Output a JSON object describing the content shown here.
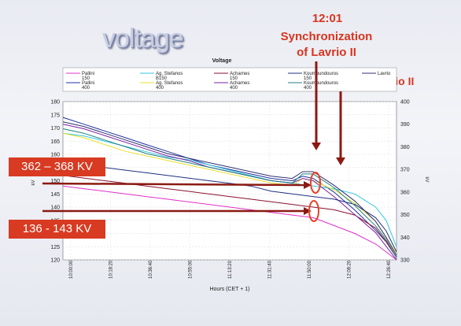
{
  "slide_title": "voltage",
  "callouts": {
    "sync_time": "12:01",
    "sync_label_line1": "Synchronization",
    "sync_label_line2": "of Lavrio II",
    "trip": "Trip of Lavrio II",
    "range_high": "362 – 368 KV",
    "range_low": "136 - 143 KV"
  },
  "colors": {
    "callout_red": "#d8341f",
    "arrow_dark_red": "#8b1a12",
    "ellipse_red": "#e8402a"
  },
  "chart_data": {
    "type": "line",
    "title": "Voltage",
    "xlabel": "Hours (CET + 1)",
    "ylabel_left": "kV",
    "ylabel_right": "kV",
    "x_ticks": [
      "10:00:00",
      "10:18:20",
      "10:36:40",
      "10:55:00",
      "11:13:20",
      "11:31:40",
      "11:50:00",
      "12:08:20",
      "12:26:40"
    ],
    "y_left_range": [
      120,
      180
    ],
    "y_left_ticks": [
      120,
      125,
      130,
      135,
      140,
      145,
      150,
      155,
      160,
      165,
      170,
      175,
      180
    ],
    "y_right_range": [
      330,
      400
    ],
    "y_right_ticks": [
      330,
      340,
      350,
      360,
      370,
      380,
      390,
      400
    ],
    "grid": true,
    "legend_placement": "top",
    "legend": [
      {
        "label": "Pallini 150",
        "color": "#e030c8"
      },
      {
        "label": "Pallini 400",
        "color": "#2030a0"
      },
      {
        "label": "Ag. Stefanos B150",
        "color": "#30c8e0"
      },
      {
        "label": "Ag. Stefanos 400",
        "color": "#e8e030"
      },
      {
        "label": "Acharnes 150",
        "color": "#8a1030"
      },
      {
        "label": "Acharnes 400",
        "color": "#7a20a0"
      },
      {
        "label": "Koumoundouros 150",
        "color": "#203080"
      },
      {
        "label": "Koumoundouros 400",
        "color": "#208080"
      },
      {
        "label": "Lavrio",
        "color": "#303070"
      }
    ],
    "series": [
      {
        "name": "Pallini 150",
        "axis": "left",
        "color": "#e030c8",
        "x": [
          0,
          10,
          20,
          30,
          40,
          50,
          60,
          70,
          80,
          90,
          100,
          110,
          120,
          130,
          140,
          150,
          155,
          160
        ],
        "y": [
          148,
          147,
          146,
          145,
          144,
          143,
          142,
          141,
          140,
          139,
          138,
          137,
          136,
          133,
          130,
          126,
          123,
          120
        ]
      },
      {
        "name": "Pallini 400",
        "axis": "right",
        "color": "#2030a0",
        "x": [
          0,
          10,
          20,
          30,
          40,
          50,
          60,
          70,
          80,
          90,
          100,
          110,
          115,
          120,
          130,
          140,
          150,
          155,
          160
        ],
        "y": [
          393,
          390,
          387,
          384,
          381,
          378,
          375,
          372,
          370,
          368,
          366,
          365,
          367,
          366,
          360,
          352,
          343,
          338,
          331
        ]
      },
      {
        "name": "Ag. Stefanos B150",
        "axis": "left",
        "color": "#30c8e0",
        "x": [
          0,
          10,
          20,
          30,
          40,
          50,
          60,
          70,
          80,
          90,
          100,
          110,
          120,
          130,
          140,
          150,
          155,
          160
        ],
        "y": [
          168,
          167,
          165,
          163,
          161,
          159,
          158,
          156,
          154,
          152,
          150,
          149,
          148,
          147,
          145,
          140,
          135,
          125
        ]
      },
      {
        "name": "Ag. Stefanos 400",
        "axis": "right",
        "color": "#e8e030",
        "x": [
          0,
          10,
          20,
          30,
          40,
          50,
          60,
          70,
          80,
          90,
          100,
          110,
          115,
          120,
          130,
          140,
          150,
          155,
          160
        ],
        "y": [
          386,
          384,
          381,
          378,
          376,
          374,
          372,
          370,
          368,
          366,
          364,
          363,
          366,
          365,
          361,
          355,
          347,
          340,
          333
        ]
      },
      {
        "name": "Acharnes 150",
        "axis": "left",
        "color": "#8a1030",
        "x": [
          0,
          10,
          20,
          30,
          40,
          50,
          60,
          70,
          80,
          90,
          100,
          110,
          120,
          130,
          140,
          150,
          155,
          160
        ],
        "y": [
          152,
          151,
          150,
          149,
          148,
          147,
          146,
          145,
          144,
          143,
          142,
          141,
          140,
          139,
          137,
          132,
          127,
          121
        ]
      },
      {
        "name": "Acharnes 400",
        "axis": "right",
        "color": "#7a20a0",
        "x": [
          0,
          10,
          20,
          30,
          40,
          50,
          60,
          70,
          80,
          90,
          100,
          110,
          115,
          120,
          130,
          140,
          150,
          155,
          160
        ],
        "y": [
          390,
          388,
          385,
          382,
          379,
          376,
          374,
          371,
          369,
          367,
          365,
          364,
          366,
          365,
          358,
          350,
          342,
          336,
          330
        ]
      },
      {
        "name": "Koumoundouros 150",
        "axis": "left",
        "color": "#203080",
        "x": [
          0,
          10,
          20,
          30,
          40,
          50,
          60,
          70,
          80,
          90,
          100,
          110,
          120,
          130,
          140,
          150,
          155,
          160
        ],
        "y": [
          157,
          156,
          155,
          154,
          153,
          152,
          151,
          150,
          149,
          148,
          146,
          145,
          144,
          143,
          141,
          136,
          131,
          123
        ]
      },
      {
        "name": "Koumoundouros 400",
        "axis": "right",
        "color": "#208080",
        "x": [
          0,
          10,
          20,
          30,
          40,
          50,
          60,
          70,
          80,
          90,
          100,
          110,
          115,
          120,
          130,
          140,
          150,
          155,
          160
        ],
        "y": [
          388,
          386,
          383,
          380,
          377,
          375,
          373,
          371,
          369,
          367,
          365,
          364,
          368,
          368,
          362,
          354,
          345,
          339,
          331
        ]
      },
      {
        "name": "Lavrio",
        "axis": "right",
        "color": "#303070",
        "x": [
          0,
          10,
          20,
          30,
          40,
          50,
          60,
          70,
          80,
          90,
          100,
          110,
          115,
          120,
          130,
          140,
          150,
          155,
          160
        ],
        "y": [
          391,
          389,
          386,
          383,
          380,
          377,
          375,
          373,
          371,
          369,
          367,
          366,
          369,
          369,
          363,
          356,
          347,
          340,
          332
        ]
      }
    ]
  }
}
